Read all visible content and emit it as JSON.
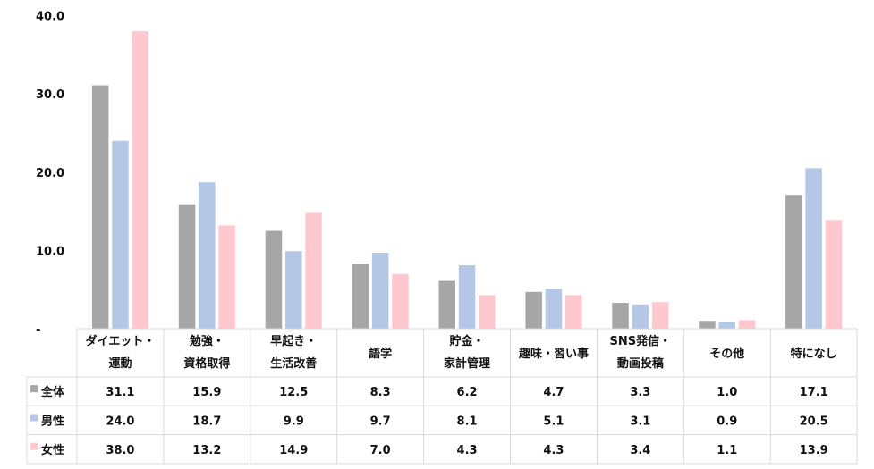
{
  "chart_data": {
    "type": "bar",
    "categories": [
      [
        "ダイエット・",
        "運動"
      ],
      [
        "勉強・",
        "資格取得"
      ],
      [
        "早起き・",
        "生活改善"
      ],
      [
        "語学"
      ],
      [
        "貯金・",
        "家計管理"
      ],
      [
        "趣味・習い事"
      ],
      [
        "SNS発信・",
        "動画投稿"
      ],
      [
        "その他"
      ],
      [
        "特になし"
      ]
    ],
    "series": [
      {
        "name": "全体",
        "color": "#a6a6a6",
        "values": [
          31.1,
          15.9,
          12.5,
          8.3,
          6.2,
          4.7,
          3.3,
          1.0,
          17.1
        ]
      },
      {
        "name": "男性",
        "color": "#b4c7e7",
        "values": [
          24.0,
          18.7,
          9.9,
          9.7,
          8.1,
          5.1,
          3.1,
          0.9,
          20.5
        ]
      },
      {
        "name": "女性",
        "color": "#ffc7ce",
        "values": [
          38.0,
          13.2,
          14.9,
          7.0,
          4.3,
          4.3,
          3.4,
          1.1,
          13.9
        ]
      }
    ],
    "y_ticks": [
      "-",
      "10.0",
      "20.0",
      "30.0",
      "40.0"
    ],
    "ylim": [
      0,
      40
    ],
    "grid": false,
    "legend": "data-table"
  }
}
